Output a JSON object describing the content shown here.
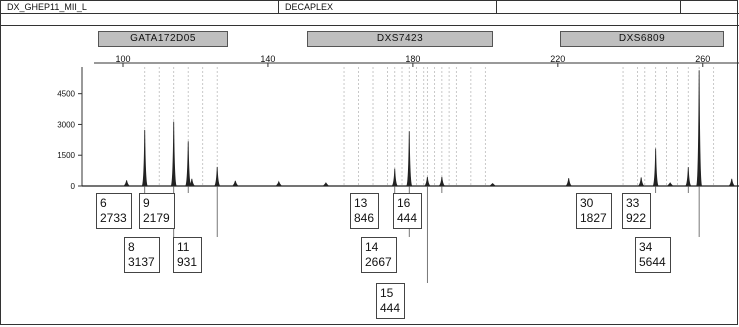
{
  "header": {
    "panel_name": "DX_GHEP11_MII_L",
    "kit_name": "DECAPLEX"
  },
  "markers": [
    {
      "name": "GATA172D05"
    },
    {
      "name": "DXS7423"
    },
    {
      "name": "DXS6809"
    }
  ],
  "colors": {
    "trace": "#222222",
    "marker_fill": "#bfbfbf",
    "bin_lines": "#bbbbbb"
  },
  "chart_data": {
    "type": "line",
    "title": "",
    "xlabel": "",
    "ylabel": "",
    "xlim": [
      92,
      270
    ],
    "ylim": [
      0,
      5800
    ],
    "x_ticks": [
      100,
      140,
      180,
      220,
      260
    ],
    "y_ticks": [
      0,
      1500,
      3000,
      4500
    ],
    "grid": false,
    "peaks": [
      {
        "x": 101,
        "h": 280
      },
      {
        "x": 106,
        "h": 2733
      },
      {
        "x": 114,
        "h": 3137
      },
      {
        "x": 118,
        "h": 2179
      },
      {
        "x": 119,
        "h": 350
      },
      {
        "x": 126,
        "h": 931
      },
      {
        "x": 131,
        "h": 250
      },
      {
        "x": 143,
        "h": 200
      },
      {
        "x": 156,
        "h": 150
      },
      {
        "x": 175,
        "h": 846
      },
      {
        "x": 179,
        "h": 2667
      },
      {
        "x": 184,
        "h": 444
      },
      {
        "x": 188,
        "h": 444
      },
      {
        "x": 202,
        "h": 120
      },
      {
        "x": 223,
        "h": 380
      },
      {
        "x": 243,
        "h": 420
      },
      {
        "x": 247,
        "h": 1827
      },
      {
        "x": 251,
        "h": 150
      },
      {
        "x": 256,
        "h": 922
      },
      {
        "x": 259,
        "h": 5644
      },
      {
        "x": 268,
        "h": 350
      }
    ],
    "bins": [
      106,
      110,
      114,
      118,
      122,
      126,
      161,
      165,
      169,
      173,
      175,
      177,
      179,
      181,
      183,
      184,
      186,
      188,
      190,
      192,
      196,
      200,
      238,
      242,
      244,
      247,
      250,
      253,
      256,
      259,
      263
    ],
    "allele_labels": [
      {
        "allele": "6",
        "rfu": "2733"
      },
      {
        "allele": "8",
        "rfu": "3137"
      },
      {
        "allele": "9",
        "rfu": "2179"
      },
      {
        "allele": "11",
        "rfu": "931"
      },
      {
        "allele": "13",
        "rfu": "846"
      },
      {
        "allele": "14",
        "rfu": "2667"
      },
      {
        "allele": "15",
        "rfu": "444"
      },
      {
        "allele": "16",
        "rfu": "444"
      },
      {
        "allele": "30",
        "rfu": "1827"
      },
      {
        "allele": "33",
        "rfu": "922"
      },
      {
        "allele": "34",
        "rfu": "5644"
      }
    ]
  }
}
